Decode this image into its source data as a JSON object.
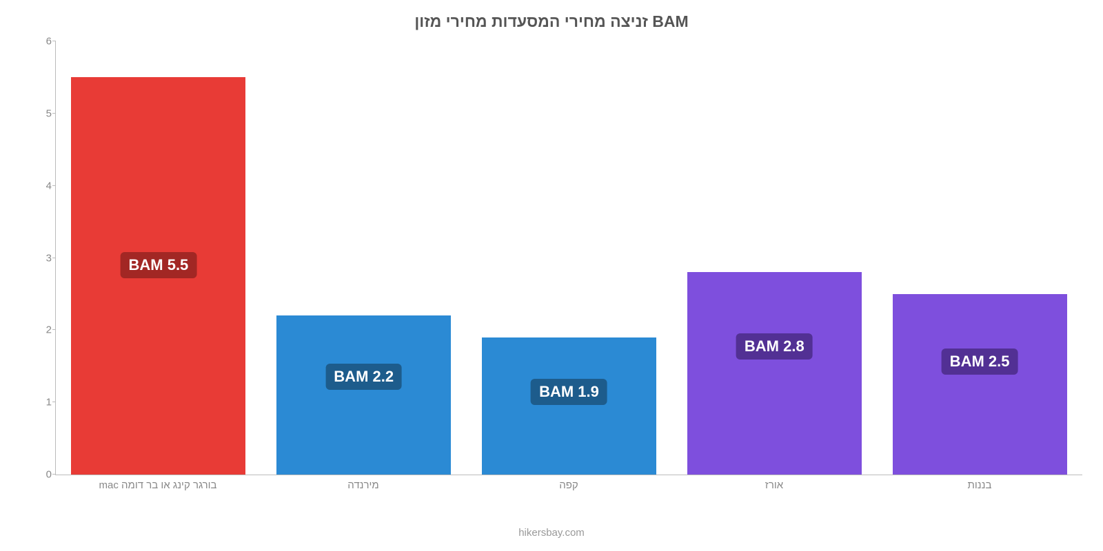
{
  "chart": {
    "type": "bar",
    "title": "זניצה מחירי המסעדות מחירי מזון BAM",
    "title_fontsize": 23,
    "title_color": "#555555",
    "background_color": "#ffffff",
    "ylim": [
      0,
      6
    ],
    "ytick_step": 1,
    "yticks": [
      0,
      1,
      2,
      3,
      4,
      5,
      6
    ],
    "axis_color": "#bbbbbb",
    "tick_label_color": "#888888",
    "tick_label_fontsize": 15,
    "bar_width_pct": 85,
    "data_label_fontsize": 22,
    "data_label_text_color": "#ffffff",
    "categories": [
      "בורגר קינג או בר דומה mac",
      "מירנדה",
      "קפה",
      "אורז",
      "בננות"
    ],
    "values": [
      5.5,
      2.2,
      1.9,
      2.8,
      2.5
    ],
    "value_labels": [
      "BAM 5.5",
      "BAM 2.2",
      "BAM 1.9",
      "BAM 2.8",
      "BAM 2.5"
    ],
    "bar_colors": [
      "#e83b36",
      "#2b8ad4",
      "#2b8ad4",
      "#7e4fdd",
      "#7e4fdd"
    ],
    "label_bg_colors": [
      "#a22724",
      "#1d5c8c",
      "#1d5c8c",
      "#523094",
      "#523094"
    ],
    "label_y_offsets_pct": [
      44,
      30,
      30,
      30,
      30
    ],
    "footer_text": "hikersbay.com",
    "footer_color": "#999999",
    "footer_fontsize": 15
  }
}
